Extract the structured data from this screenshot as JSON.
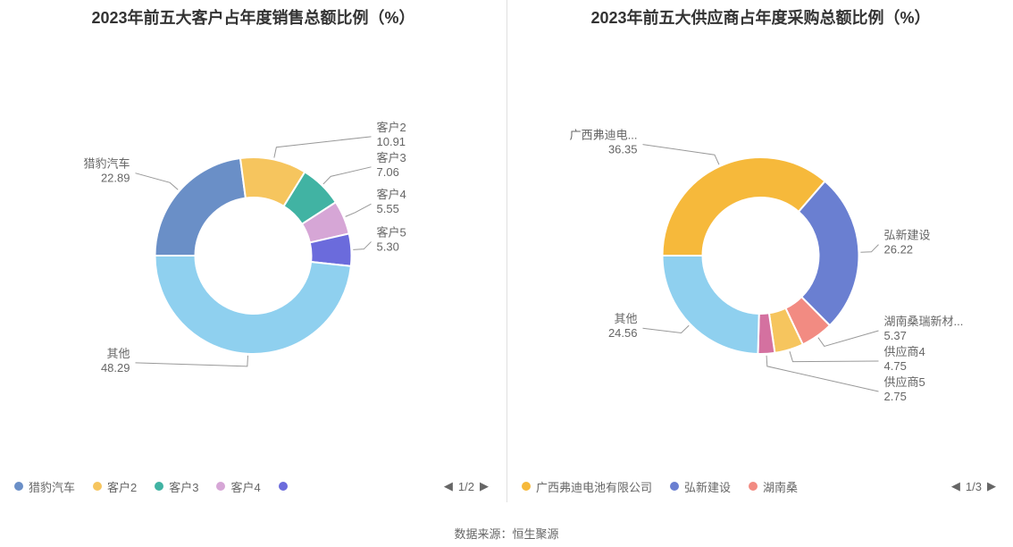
{
  "source_line": "数据来源：恒生聚源",
  "background_color": "#ffffff",
  "divider_color": "#e0e0e0",
  "label_text_color": "#666666",
  "leader_color": "#999999",
  "charts": [
    {
      "title": "2023年前五大客户占年度销售总额比例（%）",
      "type": "donut",
      "innerRadius": 65,
      "outerRadius": 110,
      "startAngle": -90,
      "slices": [
        {
          "name": "猎豹汽车",
          "value": 22.89,
          "color": "#6a8fc7",
          "displayName": "猎豹汽车"
        },
        {
          "name": "客户2",
          "value": 10.91,
          "color": "#f6c55e",
          "displayName": "客户2"
        },
        {
          "name": "客户3",
          "value": 7.06,
          "color": "#41b3a3",
          "displayName": "客户3"
        },
        {
          "name": "客户4",
          "value": 5.55,
          "color": "#d6a6d6",
          "displayName": "客户4"
        },
        {
          "name": "客户5",
          "value": 5.3,
          "color": "#6b6bdc",
          "displayName": "客户5"
        },
        {
          "name": "其他",
          "value": 48.29,
          "color": "#8fd0ef",
          "displayName": "其他"
        }
      ],
      "legend": {
        "visible_items": [
          {
            "name": "猎豹汽车",
            "color": "#6a8fc7"
          },
          {
            "name": "客户2",
            "color": "#f6c55e"
          },
          {
            "name": "客户3",
            "color": "#41b3a3"
          },
          {
            "name": "客户4",
            "color": "#d6a6d6"
          }
        ],
        "next_swatch_color": "#6b6bdc",
        "page_text": "1/2",
        "show_prev": true,
        "show_next": true
      }
    },
    {
      "title": "2023年前五大供应商占年度采购总额比例（%）",
      "type": "donut",
      "innerRadius": 65,
      "outerRadius": 110,
      "startAngle": -90,
      "slices": [
        {
          "name": "广西弗迪电池有限公司",
          "value": 36.35,
          "color": "#f6b93b",
          "displayName": "广西弗迪电..."
        },
        {
          "name": "弘新建设",
          "value": 26.22,
          "color": "#6a7fd1",
          "displayName": "弘新建设"
        },
        {
          "name": "湖南桑瑞新材",
          "value": 5.37,
          "color": "#f28b82",
          "displayName": "湖南桑瑞新材..."
        },
        {
          "name": "供应商4",
          "value": 4.75,
          "color": "#f6c55e",
          "displayName": "供应商4"
        },
        {
          "name": "供应商5",
          "value": 2.75,
          "color": "#d471a0",
          "displayName": "供应商5"
        },
        {
          "name": "其他",
          "value": 24.56,
          "color": "#8fd0ef",
          "displayName": "其他"
        }
      ],
      "legend": {
        "visible_items": [
          {
            "name": "广西弗迪电池有限公司",
            "color": "#f6b93b"
          },
          {
            "name": "弘新建设",
            "color": "#6a7fd1"
          },
          {
            "name": "湖南桑",
            "color": "#f28b82"
          }
        ],
        "next_swatch_color": null,
        "page_text": "1/3",
        "show_prev": true,
        "show_next": true
      }
    }
  ]
}
